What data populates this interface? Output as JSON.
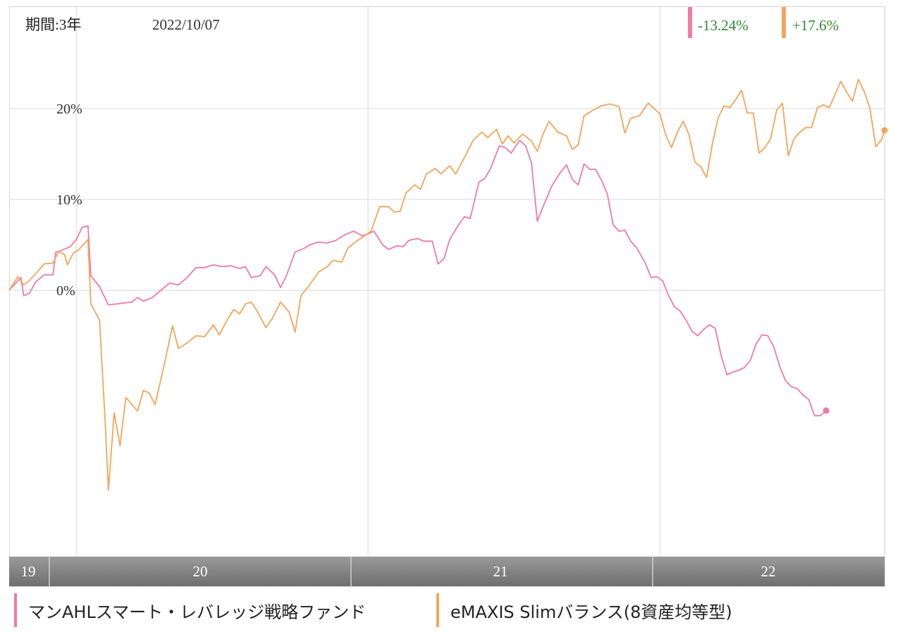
{
  "header": {
    "period_label": "期間:3年",
    "date_label": "2022/10/07"
  },
  "badges": [
    {
      "text": "-13.24%",
      "color": "#f07aa8"
    },
    {
      "text": "+17.6%",
      "color": "#f4a55a"
    }
  ],
  "legend": [
    {
      "label": "マンAHLスマート・レバレッジ戦略ファンド",
      "color": "#f07aa8"
    },
    {
      "label": "eMAXIS Slimバランス(8資産均等型)",
      "color": "#f4a55a"
    }
  ],
  "chart_data": {
    "type": "line",
    "x_axis_labels": [
      "19",
      "20",
      "21",
      "22"
    ],
    "y_tick_labels": [
      "20%",
      "10%",
      "0%"
    ],
    "y_ticks": [
      20,
      10,
      0
    ],
    "ylim": [
      -29,
      31
    ],
    "xlim": [
      2019.77,
      2022.77
    ],
    "grid": true,
    "legend_position": "bottom",
    "series": [
      {
        "name": "マンAHLスマート・レバレッジ戦略ファンド",
        "color": "#f07aa8",
        "points": [
          [
            2019.77,
            0
          ],
          [
            2019.81,
            1.4
          ],
          [
            2019.82,
            -0.6
          ],
          [
            2019.84,
            -0.3
          ],
          [
            2019.86,
            0.9
          ],
          [
            2019.89,
            1.7
          ],
          [
            2019.92,
            1.7
          ],
          [
            2019.93,
            4.2
          ],
          [
            2019.95,
            4.4
          ],
          [
            2019.98,
            4.8
          ],
          [
            2020.0,
            5.6
          ],
          [
            2020.02,
            6.9
          ],
          [
            2020.04,
            7.1
          ],
          [
            2020.05,
            1.6
          ],
          [
            2020.08,
            0.4
          ],
          [
            2020.09,
            -0.3
          ],
          [
            2020.11,
            -1.6
          ],
          [
            2020.14,
            -1.5
          ],
          [
            2020.16,
            -1.4
          ],
          [
            2020.19,
            -1.3
          ],
          [
            2020.21,
            -0.8
          ],
          [
            2020.23,
            -1.2
          ],
          [
            2020.26,
            -0.8
          ],
          [
            2020.29,
            0
          ],
          [
            2020.32,
            0.8
          ],
          [
            2020.35,
            0.6
          ],
          [
            2020.38,
            1.4
          ],
          [
            2020.41,
            2.5
          ],
          [
            2020.44,
            2.5
          ],
          [
            2020.47,
            2.8
          ],
          [
            2020.5,
            2.6
          ],
          [
            2020.53,
            2.7
          ],
          [
            2020.56,
            2.4
          ],
          [
            2020.58,
            2.6
          ],
          [
            2020.6,
            1.4
          ],
          [
            2020.63,
            1.6
          ],
          [
            2020.65,
            2.6
          ],
          [
            2020.68,
            1.7
          ],
          [
            2020.7,
            0.3
          ],
          [
            2020.72,
            1.6
          ],
          [
            2020.75,
            4.2
          ],
          [
            2020.78,
            4.6
          ],
          [
            2020.8,
            5.0
          ],
          [
            2020.83,
            5.3
          ],
          [
            2020.86,
            5.2
          ],
          [
            2020.89,
            5.5
          ],
          [
            2020.92,
            6.1
          ],
          [
            2020.95,
            6.5
          ],
          [
            2020.98,
            6.0
          ],
          [
            2021.0,
            6.2
          ],
          [
            2021.02,
            6.5
          ],
          [
            2021.05,
            5.0
          ],
          [
            2021.07,
            4.5
          ],
          [
            2021.1,
            4.9
          ],
          [
            2021.12,
            4.8
          ],
          [
            2021.14,
            5.5
          ],
          [
            2021.17,
            5.7
          ],
          [
            2021.19,
            5.4
          ],
          [
            2021.22,
            5.4
          ],
          [
            2021.24,
            2.9
          ],
          [
            2021.26,
            3.5
          ],
          [
            2021.28,
            5.6
          ],
          [
            2021.31,
            7.2
          ],
          [
            2021.33,
            8.1
          ],
          [
            2021.35,
            7.9
          ],
          [
            2021.38,
            11.9
          ],
          [
            2021.4,
            12.3
          ],
          [
            2021.42,
            13.4
          ],
          [
            2021.45,
            15.9
          ],
          [
            2021.47,
            15.7
          ],
          [
            2021.49,
            15.1
          ],
          [
            2021.52,
            16.5
          ],
          [
            2021.54,
            15.9
          ],
          [
            2021.56,
            14.0
          ],
          [
            2021.58,
            7.6
          ],
          [
            2021.6,
            9.2
          ],
          [
            2021.63,
            11.5
          ],
          [
            2021.66,
            13.0
          ],
          [
            2021.68,
            13.8
          ],
          [
            2021.7,
            12.2
          ],
          [
            2021.72,
            11.6
          ],
          [
            2021.74,
            13.9
          ],
          [
            2021.76,
            13.3
          ],
          [
            2021.78,
            13.3
          ],
          [
            2021.8,
            12.1
          ],
          [
            2021.82,
            10.6
          ],
          [
            2021.84,
            7.2
          ],
          [
            2021.86,
            6.5
          ],
          [
            2021.88,
            6.6
          ],
          [
            2021.9,
            5.4
          ],
          [
            2021.92,
            4.7
          ],
          [
            2021.95,
            3.0
          ],
          [
            2021.97,
            1.4
          ],
          [
            2021.99,
            1.5
          ],
          [
            2022.01,
            1.0
          ],
          [
            2022.03,
            -0.6
          ],
          [
            2022.05,
            -1.8
          ],
          [
            2022.07,
            -2.3
          ],
          [
            2022.09,
            -3.3
          ],
          [
            2022.11,
            -4.5
          ],
          [
            2022.13,
            -5.0
          ],
          [
            2022.15,
            -4.3
          ],
          [
            2022.17,
            -3.8
          ],
          [
            2022.19,
            -4.2
          ],
          [
            2022.21,
            -7.2
          ],
          [
            2022.23,
            -9.3
          ],
          [
            2022.25,
            -9.0
          ],
          [
            2022.27,
            -8.8
          ],
          [
            2022.29,
            -8.5
          ],
          [
            2022.31,
            -7.7
          ],
          [
            2022.33,
            -5.9
          ],
          [
            2022.35,
            -4.9
          ],
          [
            2022.37,
            -5.0
          ],
          [
            2022.39,
            -6.2
          ],
          [
            2022.41,
            -8.3
          ],
          [
            2022.43,
            -9.9
          ],
          [
            2022.45,
            -10.6
          ],
          [
            2022.47,
            -10.8
          ],
          [
            2022.49,
            -11.5
          ],
          [
            2022.51,
            -12.0
          ],
          [
            2022.53,
            -13.8
          ],
          [
            2022.55,
            -13.8
          ],
          [
            2022.57,
            -13.24
          ]
        ]
      },
      {
        "name": "eMAXIS Slimバランス(8資産均等型)",
        "color": "#f4a55a",
        "points": [
          [
            2019.77,
            0
          ],
          [
            2019.8,
            1.5
          ],
          [
            2019.82,
            0.6
          ],
          [
            2019.84,
            1.1
          ],
          [
            2019.86,
            1.8
          ],
          [
            2019.89,
            2.9
          ],
          [
            2019.92,
            3.0
          ],
          [
            2019.94,
            4.3
          ],
          [
            2019.96,
            3.9
          ],
          [
            2019.97,
            2.8
          ],
          [
            2019.99,
            4.1
          ],
          [
            2020.01,
            4.5
          ],
          [
            2020.04,
            5.6
          ],
          [
            2020.05,
            -1.5
          ],
          [
            2020.08,
            -3.3
          ],
          [
            2020.1,
            -15
          ],
          [
            2020.11,
            -22.0
          ],
          [
            2020.13,
            -13.5
          ],
          [
            2020.15,
            -17.1
          ],
          [
            2020.17,
            -11.8
          ],
          [
            2020.21,
            -13.3
          ],
          [
            2020.23,
            -11.0
          ],
          [
            2020.25,
            -11.3
          ],
          [
            2020.27,
            -12.6
          ],
          [
            2020.3,
            -8.4
          ],
          [
            2020.33,
            -3.9
          ],
          [
            2020.35,
            -6.4
          ],
          [
            2020.38,
            -5.8
          ],
          [
            2020.41,
            -5.0
          ],
          [
            2020.44,
            -5.1
          ],
          [
            2020.47,
            -3.8
          ],
          [
            2020.49,
            -4.9
          ],
          [
            2020.52,
            -3.1
          ],
          [
            2020.54,
            -2.1
          ],
          [
            2020.56,
            -2.6
          ],
          [
            2020.58,
            -1.5
          ],
          [
            2020.6,
            -1.3
          ],
          [
            2020.62,
            -2.3
          ],
          [
            2020.65,
            -4.1
          ],
          [
            2020.67,
            -3.2
          ],
          [
            2020.7,
            -1.3
          ],
          [
            2020.73,
            -2.4
          ],
          [
            2020.75,
            -4.6
          ],
          [
            2020.77,
            -0.6
          ],
          [
            2020.8,
            0.6
          ],
          [
            2020.83,
            2.0
          ],
          [
            2020.86,
            2.6
          ],
          [
            2020.88,
            3.3
          ],
          [
            2020.91,
            3.1
          ],
          [
            2020.93,
            4.6
          ],
          [
            2020.96,
            5.4
          ],
          [
            2020.98,
            5.8
          ],
          [
            2021.01,
            6.5
          ],
          [
            2021.04,
            9.2
          ],
          [
            2021.07,
            9.2
          ],
          [
            2021.09,
            8.6
          ],
          [
            2021.11,
            8.7
          ],
          [
            2021.13,
            10.7
          ],
          [
            2021.16,
            11.6
          ],
          [
            2021.18,
            11.1
          ],
          [
            2021.2,
            12.8
          ],
          [
            2021.23,
            13.4
          ],
          [
            2021.25,
            12.8
          ],
          [
            2021.28,
            13.7
          ],
          [
            2021.3,
            12.8
          ],
          [
            2021.33,
            14.6
          ],
          [
            2021.36,
            16.5
          ],
          [
            2021.39,
            17.4
          ],
          [
            2021.41,
            16.8
          ],
          [
            2021.44,
            17.7
          ],
          [
            2021.46,
            16.1
          ],
          [
            2021.48,
            17.0
          ],
          [
            2021.5,
            16.2
          ],
          [
            2021.53,
            17.2
          ],
          [
            2021.56,
            16.4
          ],
          [
            2021.58,
            15.3
          ],
          [
            2021.6,
            17.2
          ],
          [
            2021.62,
            18.6
          ],
          [
            2021.65,
            17.4
          ],
          [
            2021.68,
            17.0
          ],
          [
            2021.7,
            15.5
          ],
          [
            2021.72,
            16.0
          ],
          [
            2021.74,
            19.2
          ],
          [
            2021.77,
            19.8
          ],
          [
            2021.8,
            20.3
          ],
          [
            2021.83,
            20.5
          ],
          [
            2021.86,
            20.2
          ],
          [
            2021.88,
            17.3
          ],
          [
            2021.9,
            18.9
          ],
          [
            2021.93,
            19.2
          ],
          [
            2021.96,
            20.6
          ],
          [
            2021.98,
            20.0
          ],
          [
            2022.0,
            19.4
          ],
          [
            2022.02,
            17.1
          ],
          [
            2022.04,
            15.7
          ],
          [
            2022.06,
            17.4
          ],
          [
            2022.08,
            18.6
          ],
          [
            2022.1,
            17.1
          ],
          [
            2022.12,
            14.1
          ],
          [
            2022.14,
            13.6
          ],
          [
            2022.16,
            12.4
          ],
          [
            2022.18,
            16.1
          ],
          [
            2022.2,
            19.0
          ],
          [
            2022.22,
            20.3
          ],
          [
            2022.24,
            20.1
          ],
          [
            2022.26,
            21.0
          ],
          [
            2022.28,
            22.0
          ],
          [
            2022.3,
            19.5
          ],
          [
            2022.32,
            19.5
          ],
          [
            2022.34,
            15.1
          ],
          [
            2022.36,
            15.7
          ],
          [
            2022.38,
            16.7
          ],
          [
            2022.4,
            19.8
          ],
          [
            2022.42,
            20.6
          ],
          [
            2022.44,
            14.8
          ],
          [
            2022.46,
            16.7
          ],
          [
            2022.48,
            17.4
          ],
          [
            2022.5,
            17.9
          ],
          [
            2022.52,
            17.9
          ],
          [
            2022.54,
            20.1
          ],
          [
            2022.56,
            20.4
          ],
          [
            2022.58,
            20.1
          ],
          [
            2022.6,
            21.5
          ],
          [
            2022.62,
            23.0
          ],
          [
            2022.64,
            21.8
          ],
          [
            2022.66,
            20.8
          ],
          [
            2022.68,
            23.2
          ],
          [
            2022.7,
            21.9
          ],
          [
            2022.72,
            20.0
          ],
          [
            2022.74,
            15.8
          ],
          [
            2022.76,
            16.6
          ],
          [
            2022.77,
            17.6
          ]
        ]
      }
    ]
  }
}
